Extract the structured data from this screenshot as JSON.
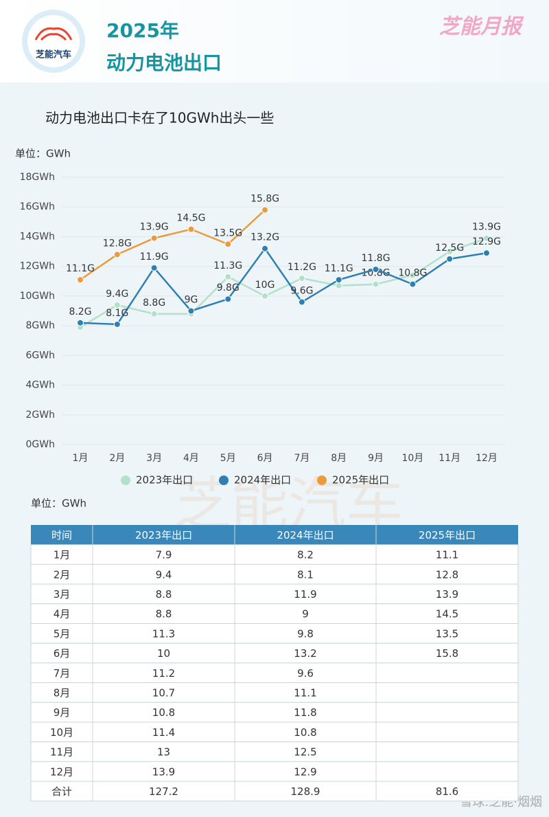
{
  "header": {
    "logo_text": "芝能汽车",
    "title_line1": "2025年",
    "title_line2": "动力电池出口",
    "brand": "芝能月报"
  },
  "watermark": "芝能汽车",
  "chart_data": {
    "type": "line",
    "title": "动力电池出口卡在了10GWh出头一些",
    "unit_label": "单位：GWh",
    "categories": [
      "1月",
      "2月",
      "3月",
      "4月",
      "5月",
      "6月",
      "7月",
      "8月",
      "9月",
      "10月",
      "11月",
      "12月"
    ],
    "ylim": [
      0,
      18
    ],
    "yticks": [
      {
        "value": 0,
        "label": "0GWh"
      },
      {
        "value": 2,
        "label": "2GWh"
      },
      {
        "value": 4,
        "label": "4GWh"
      },
      {
        "value": 6,
        "label": "6GWh"
      },
      {
        "value": 8,
        "label": "8GWh"
      },
      {
        "value": 10,
        "label": "10GWh"
      },
      {
        "value": 12,
        "label": "12GWh"
      },
      {
        "value": 14,
        "label": "14GWh"
      },
      {
        "value": 16,
        "label": "16GWh"
      },
      {
        "value": 18,
        "label": "18GWh"
      }
    ],
    "grid": true,
    "legend": "bottom",
    "series": [
      {
        "name": "2023年出口",
        "color": "#b3e0cb",
        "values": [
          7.9,
          9.4,
          8.8,
          8.8,
          11.3,
          10,
          11.2,
          10.7,
          10.8,
          11.4,
          13,
          13.9
        ],
        "value_labels": [
          null,
          "9.4G",
          "8.8G",
          null,
          "11.3G",
          "10G",
          "11.2G",
          null,
          "10.8G",
          null,
          null,
          "13.9G"
        ]
      },
      {
        "name": "2024年出口",
        "color": "#2f7fb2",
        "values": [
          8.2,
          8.1,
          11.9,
          9,
          9.8,
          13.2,
          9.6,
          11.1,
          11.8,
          10.8,
          12.5,
          12.9
        ],
        "value_labels": [
          "8.2G",
          "8.1G",
          "11.9G",
          "9G",
          "9.8G",
          "13.2G",
          "9.6G",
          "11.1G",
          "11.8G",
          "10.8G",
          "12.5G",
          "12.9G"
        ]
      },
      {
        "name": "2025年出口",
        "color": "#ec9a3c",
        "values": [
          11.1,
          12.8,
          13.9,
          14.5,
          13.5,
          15.8,
          null,
          null,
          null,
          null,
          null,
          null
        ],
        "value_labels": [
          "11.1G",
          "12.8G",
          "13.9G",
          "14.5G",
          "13.5G",
          "15.8G",
          null,
          null,
          null,
          null,
          null,
          null
        ]
      }
    ]
  },
  "table": {
    "unit_label": "单位：GWh",
    "columns": [
      "时间",
      "2023年出口",
      "2024年出口",
      "2025年出口"
    ],
    "rows": [
      [
        "1月",
        "7.9",
        "8.2",
        "11.1"
      ],
      [
        "2月",
        "9.4",
        "8.1",
        "12.8"
      ],
      [
        "3月",
        "8.8",
        "11.9",
        "13.9"
      ],
      [
        "4月",
        "8.8",
        "9",
        "14.5"
      ],
      [
        "5月",
        "11.3",
        "9.8",
        "13.5"
      ],
      [
        "6月",
        "10",
        "13.2",
        "15.8"
      ],
      [
        "7月",
        "11.2",
        "9.6",
        null
      ],
      [
        "8月",
        "10.7",
        "11.1",
        null
      ],
      [
        "9月",
        "10.8",
        "11.8",
        null
      ],
      [
        "10月",
        "11.4",
        "10.8",
        null
      ],
      [
        "11月",
        "13",
        "12.5",
        null
      ],
      [
        "12月",
        "13.9",
        "12.9",
        null
      ],
      [
        "合计",
        "127.2",
        "128.9",
        "81.6"
      ]
    ]
  },
  "footer_watermark": "雪球:芝能·烟烟"
}
